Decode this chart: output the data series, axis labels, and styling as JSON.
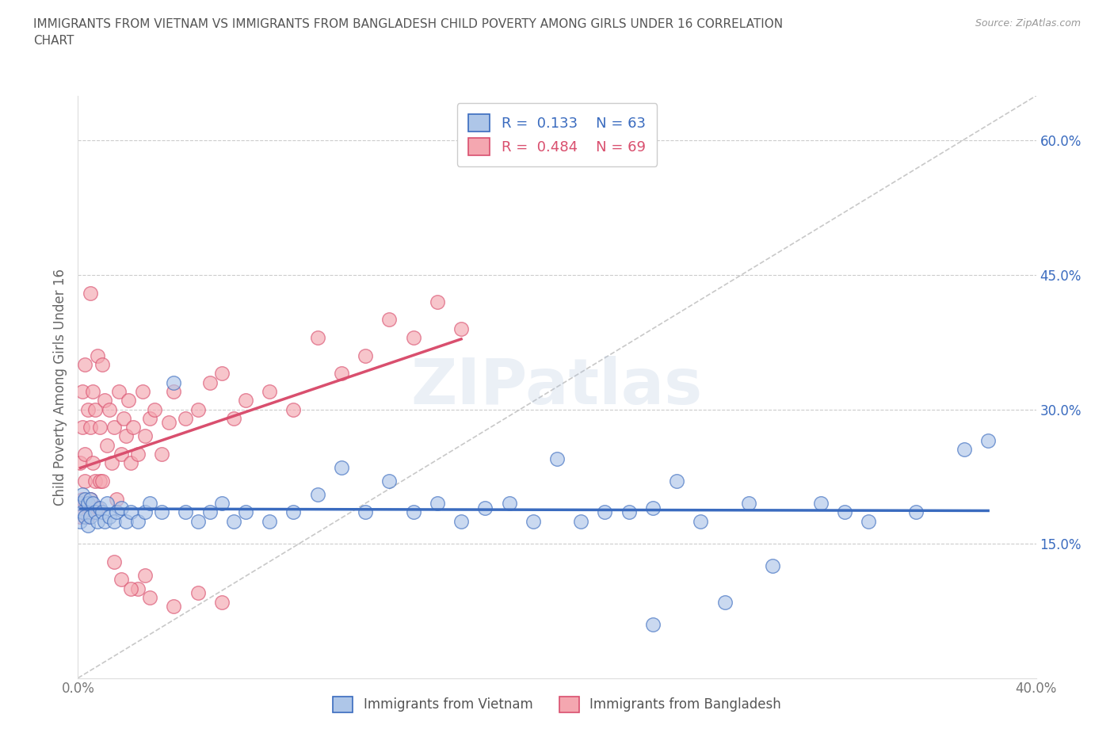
{
  "title": "IMMIGRANTS FROM VIETNAM VS IMMIGRANTS FROM BANGLADESH CHILD POVERTY AMONG GIRLS UNDER 16 CORRELATION\nCHART",
  "source": "Source: ZipAtlas.com",
  "ylabel": "Child Poverty Among Girls Under 16",
  "xlim": [
    0.0,
    0.4
  ],
  "ylim": [
    0.0,
    0.65
  ],
  "yticks": [
    0.15,
    0.3,
    0.45,
    0.6
  ],
  "ytick_labels": [
    "15.0%",
    "30.0%",
    "45.0%",
    "60.0%"
  ],
  "xticks": [
    0.0,
    0.1,
    0.2,
    0.3,
    0.4
  ],
  "xtick_labels": [
    "0.0%",
    "",
    "",
    "",
    "40.0%"
  ],
  "R_vietnam": 0.133,
  "N_vietnam": 63,
  "R_bangladesh": 0.484,
  "N_bangladesh": 69,
  "color_vietnam": "#aec6e8",
  "color_bangladesh": "#f4a7b0",
  "line_color_vietnam": "#3a6bbf",
  "line_color_bangladesh": "#d94f6e",
  "trend_color_dashed": "#bbbbbb",
  "background_color": "#ffffff",
  "watermark": "ZIPatlas",
  "scatter_vietnam_x": [
    0.001,
    0.001,
    0.002,
    0.002,
    0.003,
    0.003,
    0.004,
    0.004,
    0.005,
    0.005,
    0.006,
    0.007,
    0.008,
    0.009,
    0.01,
    0.011,
    0.012,
    0.013,
    0.015,
    0.016,
    0.018,
    0.02,
    0.022,
    0.025,
    0.028,
    0.03,
    0.035,
    0.04,
    0.045,
    0.05,
    0.055,
    0.06,
    0.065,
    0.07,
    0.08,
    0.09,
    0.1,
    0.11,
    0.12,
    0.13,
    0.14,
    0.15,
    0.16,
    0.17,
    0.18,
    0.19,
    0.2,
    0.21,
    0.22,
    0.23,
    0.24,
    0.25,
    0.27,
    0.29,
    0.31,
    0.33,
    0.35,
    0.37,
    0.38,
    0.32,
    0.28,
    0.26,
    0.24
  ],
  "scatter_vietnam_y": [
    0.195,
    0.175,
    0.205,
    0.185,
    0.2,
    0.18,
    0.195,
    0.17,
    0.2,
    0.18,
    0.195,
    0.185,
    0.175,
    0.19,
    0.185,
    0.175,
    0.195,
    0.18,
    0.175,
    0.185,
    0.19,
    0.175,
    0.185,
    0.175,
    0.185,
    0.195,
    0.185,
    0.33,
    0.185,
    0.175,
    0.185,
    0.195,
    0.175,
    0.185,
    0.175,
    0.185,
    0.205,
    0.235,
    0.185,
    0.22,
    0.185,
    0.195,
    0.175,
    0.19,
    0.195,
    0.175,
    0.245,
    0.175,
    0.185,
    0.185,
    0.19,
    0.22,
    0.085,
    0.125,
    0.195,
    0.175,
    0.185,
    0.255,
    0.265,
    0.185,
    0.195,
    0.175,
    0.06
  ],
  "scatter_bangladesh_x": [
    0.001,
    0.001,
    0.001,
    0.002,
    0.002,
    0.002,
    0.003,
    0.003,
    0.003,
    0.004,
    0.004,
    0.005,
    0.005,
    0.005,
    0.006,
    0.006,
    0.007,
    0.007,
    0.008,
    0.008,
    0.009,
    0.009,
    0.01,
    0.01,
    0.011,
    0.012,
    0.013,
    0.014,
    0.015,
    0.016,
    0.017,
    0.018,
    0.019,
    0.02,
    0.021,
    0.022,
    0.023,
    0.025,
    0.027,
    0.028,
    0.03,
    0.032,
    0.035,
    0.038,
    0.04,
    0.045,
    0.05,
    0.055,
    0.06,
    0.065,
    0.07,
    0.08,
    0.09,
    0.1,
    0.11,
    0.12,
    0.13,
    0.14,
    0.15,
    0.16,
    0.025,
    0.03,
    0.04,
    0.05,
    0.06,
    0.015,
    0.018,
    0.022,
    0.028
  ],
  "scatter_bangladesh_y": [
    0.195,
    0.24,
    0.18,
    0.32,
    0.28,
    0.2,
    0.35,
    0.25,
    0.22,
    0.3,
    0.18,
    0.43,
    0.28,
    0.2,
    0.32,
    0.24,
    0.3,
    0.22,
    0.36,
    0.19,
    0.28,
    0.22,
    0.35,
    0.22,
    0.31,
    0.26,
    0.3,
    0.24,
    0.28,
    0.2,
    0.32,
    0.25,
    0.29,
    0.27,
    0.31,
    0.24,
    0.28,
    0.25,
    0.32,
    0.27,
    0.29,
    0.3,
    0.25,
    0.285,
    0.32,
    0.29,
    0.3,
    0.33,
    0.34,
    0.29,
    0.31,
    0.32,
    0.3,
    0.38,
    0.34,
    0.36,
    0.4,
    0.38,
    0.42,
    0.39,
    0.1,
    0.09,
    0.08,
    0.095,
    0.085,
    0.13,
    0.11,
    0.1,
    0.115
  ]
}
